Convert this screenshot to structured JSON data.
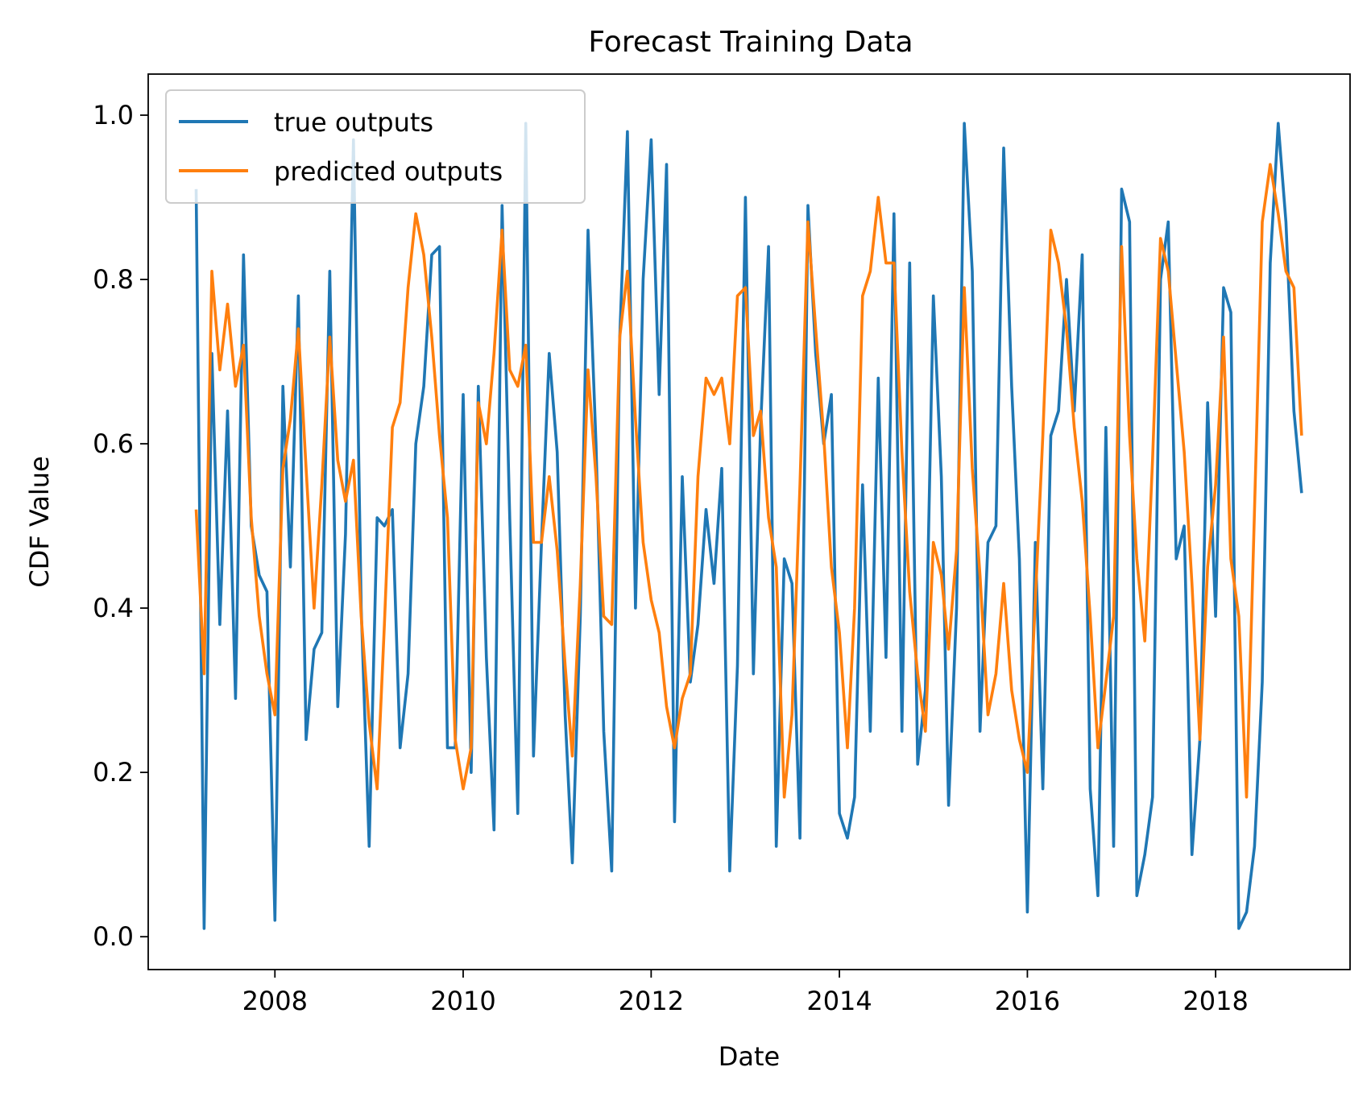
{
  "chart_data": {
    "type": "line",
    "title": "Forecast Training Data",
    "xlabel": "Date",
    "ylabel": "CDF Value",
    "xlim": [
      "2006-08-27",
      "2019-06-07"
    ],
    "ylim": [
      -0.04,
      1.05
    ],
    "x_ticks": [
      "2008",
      "2010",
      "2012",
      "2014",
      "2016",
      "2018"
    ],
    "y_ticks": [
      "0.0",
      "0.2",
      "0.4",
      "0.6",
      "0.8",
      "1.0"
    ],
    "grid": false,
    "legend_position": "upper-left",
    "x": [
      "2007-03",
      "2007-04",
      "2007-05",
      "2007-06",
      "2007-07",
      "2007-08",
      "2007-09",
      "2007-10",
      "2007-11",
      "2007-12",
      "2008-01",
      "2008-02",
      "2008-03",
      "2008-04",
      "2008-05",
      "2008-06",
      "2008-07",
      "2008-08",
      "2008-09",
      "2008-10",
      "2008-11",
      "2008-12",
      "2009-01",
      "2009-02",
      "2009-03",
      "2009-04",
      "2009-05",
      "2009-06",
      "2009-07",
      "2009-08",
      "2009-09",
      "2009-10",
      "2009-11",
      "2009-12",
      "2010-01",
      "2010-02",
      "2010-03",
      "2010-04",
      "2010-05",
      "2010-06",
      "2010-07",
      "2010-08",
      "2010-09",
      "2010-10",
      "2010-11",
      "2010-12",
      "2011-01",
      "2011-02",
      "2011-03",
      "2011-04",
      "2011-05",
      "2011-06",
      "2011-07",
      "2011-08",
      "2011-09",
      "2011-10",
      "2011-11",
      "2011-12",
      "2012-01",
      "2012-02",
      "2012-03",
      "2012-04",
      "2012-05",
      "2012-06",
      "2012-07",
      "2012-08",
      "2012-09",
      "2012-10",
      "2012-11",
      "2012-12",
      "2013-01",
      "2013-02",
      "2013-03",
      "2013-04",
      "2013-05",
      "2013-06",
      "2013-07",
      "2013-08",
      "2013-09",
      "2013-10",
      "2013-11",
      "2013-12",
      "2014-01",
      "2014-02",
      "2014-03",
      "2014-04",
      "2014-05",
      "2014-06",
      "2014-07",
      "2014-08",
      "2014-09",
      "2014-10",
      "2014-11",
      "2014-12",
      "2015-01",
      "2015-02",
      "2015-03",
      "2015-04",
      "2015-05",
      "2015-06",
      "2015-07",
      "2015-08",
      "2015-09",
      "2015-10",
      "2015-11",
      "2015-12",
      "2016-01",
      "2016-02",
      "2016-03",
      "2016-04",
      "2016-05",
      "2016-06",
      "2016-07",
      "2016-08",
      "2016-09",
      "2016-10",
      "2016-11",
      "2016-12",
      "2017-01",
      "2017-02",
      "2017-03",
      "2017-04",
      "2017-05",
      "2017-06",
      "2017-07",
      "2017-08",
      "2017-09",
      "2017-10",
      "2017-11",
      "2017-12",
      "2018-01",
      "2018-02",
      "2018-03",
      "2018-04",
      "2018-05",
      "2018-06",
      "2018-07",
      "2018-08",
      "2018-09",
      "2018-10",
      "2018-11",
      "2018-12"
    ],
    "series": [
      {
        "name": "true outputs",
        "color": "#1f77b4",
        "values": [
          0.91,
          0.01,
          0.71,
          0.38,
          0.64,
          0.29,
          0.83,
          0.5,
          0.44,
          0.42,
          0.02,
          0.67,
          0.45,
          0.78,
          0.24,
          0.35,
          0.37,
          0.81,
          0.28,
          0.49,
          0.97,
          0.4,
          0.11,
          0.51,
          0.5,
          0.52,
          0.23,
          0.32,
          0.6,
          0.67,
          0.83,
          0.84,
          0.23,
          0.23,
          0.66,
          0.2,
          0.67,
          0.34,
          0.13,
          0.89,
          0.51,
          0.15,
          0.99,
          0.22,
          0.48,
          0.71,
          0.59,
          0.27,
          0.09,
          0.39,
          0.86,
          0.6,
          0.25,
          0.08,
          0.73,
          0.98,
          0.4,
          0.8,
          0.97,
          0.66,
          0.94,
          0.14,
          0.56,
          0.31,
          0.38,
          0.52,
          0.43,
          0.57,
          0.08,
          0.33,
          0.9,
          0.32,
          0.62,
          0.84,
          0.11,
          0.46,
          0.43,
          0.12,
          0.89,
          0.71,
          0.6,
          0.66,
          0.15,
          0.12,
          0.17,
          0.55,
          0.25,
          0.68,
          0.34,
          0.88,
          0.25,
          0.82,
          0.21,
          0.3,
          0.78,
          0.56,
          0.16,
          0.4,
          0.99,
          0.81,
          0.25,
          0.48,
          0.5,
          0.96,
          0.67,
          0.46,
          0.03,
          0.48,
          0.18,
          0.61,
          0.64,
          0.8,
          0.64,
          0.83,
          0.18,
          0.05,
          0.62,
          0.11,
          0.91,
          0.87,
          0.05,
          0.1,
          0.17,
          0.8,
          0.87,
          0.46,
          0.5,
          0.1,
          0.24,
          0.65,
          0.39,
          0.79,
          0.76,
          0.01,
          0.03,
          0.11,
          0.31,
          0.82,
          0.99,
          0.87,
          0.64,
          0.54
        ]
      },
      {
        "name": "predicted outputs",
        "color": "#ff7f0e",
        "values": [
          0.52,
          0.32,
          0.81,
          0.69,
          0.77,
          0.67,
          0.72,
          0.51,
          0.39,
          0.32,
          0.27,
          0.57,
          0.63,
          0.74,
          0.57,
          0.4,
          0.55,
          0.73,
          0.58,
          0.53,
          0.58,
          0.39,
          0.26,
          0.18,
          0.38,
          0.62,
          0.65,
          0.79,
          0.88,
          0.83,
          0.73,
          0.61,
          0.51,
          0.24,
          0.18,
          0.23,
          0.65,
          0.6,
          0.71,
          0.86,
          0.69,
          0.67,
          0.72,
          0.48,
          0.48,
          0.56,
          0.47,
          0.33,
          0.22,
          0.43,
          0.69,
          0.56,
          0.39,
          0.38,
          0.73,
          0.81,
          0.63,
          0.48,
          0.41,
          0.37,
          0.28,
          0.23,
          0.29,
          0.32,
          0.56,
          0.68,
          0.66,
          0.68,
          0.6,
          0.78,
          0.79,
          0.61,
          0.64,
          0.51,
          0.45,
          0.17,
          0.27,
          0.55,
          0.87,
          0.74,
          0.61,
          0.45,
          0.37,
          0.23,
          0.4,
          0.78,
          0.81,
          0.9,
          0.82,
          0.82,
          0.59,
          0.42,
          0.32,
          0.25,
          0.48,
          0.44,
          0.35,
          0.47,
          0.79,
          0.57,
          0.44,
          0.27,
          0.32,
          0.43,
          0.3,
          0.24,
          0.2,
          0.41,
          0.61,
          0.86,
          0.82,
          0.74,
          0.62,
          0.53,
          0.39,
          0.23,
          0.31,
          0.39,
          0.84,
          0.61,
          0.46,
          0.36,
          0.58,
          0.85,
          0.81,
          0.7,
          0.59,
          0.43,
          0.24,
          0.45,
          0.55,
          0.73,
          0.46,
          0.39,
          0.17,
          0.52,
          0.87,
          0.94,
          0.88,
          0.81,
          0.79,
          0.61
        ]
      }
    ]
  }
}
